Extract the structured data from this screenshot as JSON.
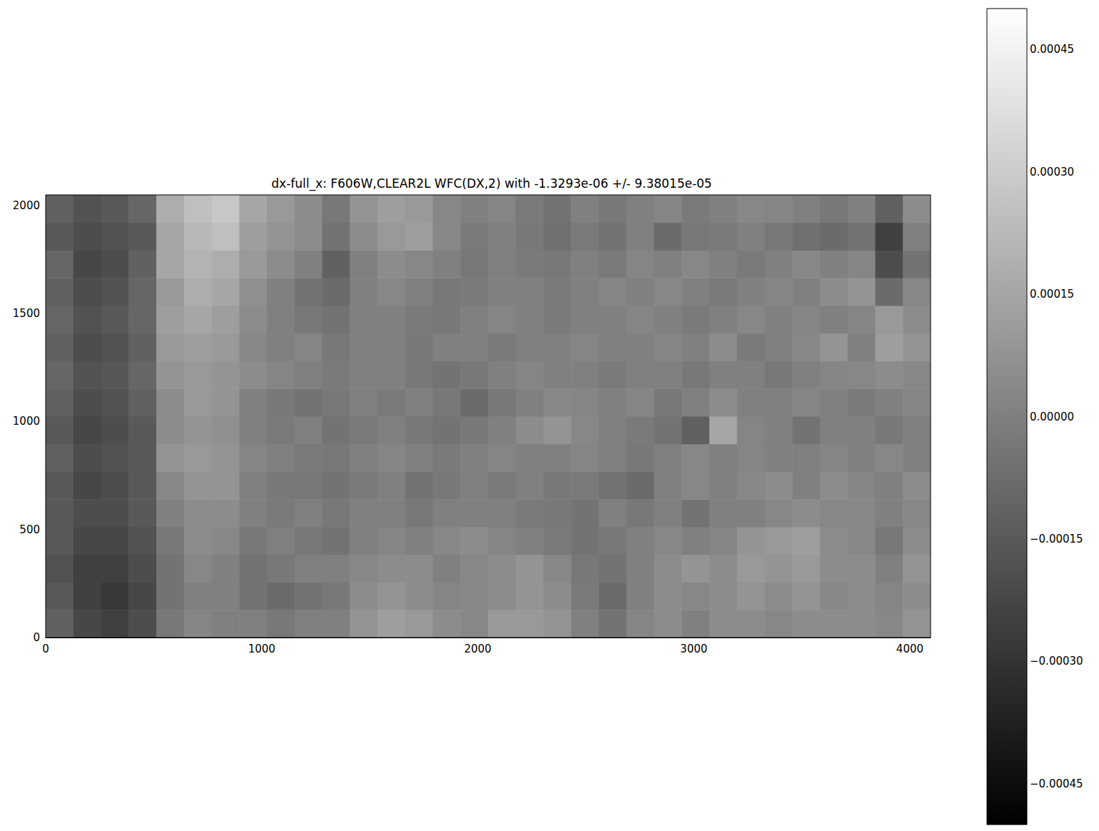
{
  "chart_data": {
    "type": "heatmap",
    "title": "dx-full_x: F606W,CLEAR2L WFC(DX,2) with -1.3293e-06 +/- 9.38015e-05",
    "xlim": [
      0,
      4096
    ],
    "xticks": [
      0,
      1000,
      2000,
      3000,
      4000
    ],
    "ylim": [
      0,
      2048
    ],
    "yticks": [
      0,
      500,
      1000,
      1500,
      2000
    ],
    "heatmap": {
      "x_edges": [
        0,
        128,
        256,
        384,
        512,
        640,
        768,
        896,
        1024,
        1152,
        1280,
        1408,
        1536,
        1664,
        1792,
        1920,
        2048,
        2176,
        2304,
        2432,
        2560,
        2688,
        2816,
        2944,
        3072,
        3200,
        3328,
        3456,
        3584,
        3712,
        3840,
        3968,
        4096
      ],
      "y_edges": [
        0,
        128,
        256,
        384,
        512,
        640,
        768,
        896,
        1024,
        1152,
        1280,
        1408,
        1536,
        1664,
        1792,
        1920,
        2048
      ],
      "cells": [
        [
          -0.00012,
          -0.00022,
          -0.00025,
          -0.0002,
          -3e-05,
          2e-05,
          0.0,
          0.0,
          -3e-05,
          0.0,
          0.0,
          8e-05,
          0.00012,
          0.0001,
          5e-05,
          3e-05,
          0.0001,
          0.0001,
          8e-05,
          0.0,
          -5e-05,
          2e-05,
          5e-05,
          0.0,
          5e-05,
          5e-05,
          3e-05,
          5e-05,
          5e-05,
          5e-05,
          3e-05,
          8e-05
        ],
        [
          -0.00015,
          -0.00025,
          -0.00028,
          -0.00022,
          -5e-05,
          0.0,
          0.0,
          -5e-05,
          -8e-05,
          -5e-05,
          -3e-05,
          5e-05,
          8e-05,
          5e-05,
          2e-05,
          3e-05,
          5e-05,
          8e-05,
          5e-05,
          -2e-05,
          -8e-05,
          0.0,
          5e-05,
          3e-05,
          5e-05,
          8e-05,
          5e-05,
          8e-05,
          3e-05,
          5e-05,
          2e-05,
          5e-05
        ],
        [
          -0.00018,
          -0.00025,
          -0.00025,
          -0.0002,
          -5e-05,
          3e-05,
          0.0,
          -5e-05,
          -3e-05,
          0.0,
          0.0,
          3e-05,
          5e-05,
          5e-05,
          0.0,
          3e-05,
          5e-05,
          8e-05,
          3e-05,
          -3e-05,
          -5e-05,
          0.0,
          5e-05,
          8e-05,
          5e-05,
          0.0001,
          8e-05,
          0.0001,
          5e-05,
          5e-05,
          0.0,
          8e-05
        ],
        [
          -0.00015,
          -0.00022,
          -0.00022,
          -0.00018,
          -3e-05,
          5e-05,
          3e-05,
          -3e-05,
          0.0,
          -3e-05,
          -5e-05,
          0.0,
          2e-05,
          0.0,
          3e-05,
          5e-05,
          2e-05,
          0.0,
          -2e-05,
          -5e-05,
          -3e-05,
          0.0,
          3e-05,
          0.0,
          2e-05,
          8e-05,
          0.0001,
          0.00012,
          5e-05,
          3e-05,
          -3e-05,
          5e-05
        ],
        [
          -0.00015,
          -0.0002,
          -0.0002,
          -0.00015,
          0.0,
          5e-05,
          5e-05,
          0.0,
          -2e-05,
          0.0,
          -3e-05,
          0.0,
          0.0,
          -3e-05,
          0.0,
          0.0,
          0.0,
          -2e-05,
          -3e-05,
          -5e-05,
          0.0,
          -3e-05,
          0.0,
          -5e-05,
          0.0,
          0.0,
          3e-05,
          5e-05,
          3e-05,
          3e-05,
          0.0,
          3e-05
        ],
        [
          -0.00015,
          -0.00022,
          -0.0002,
          -0.00015,
          3e-05,
          8e-05,
          8e-05,
          0.0,
          -3e-05,
          -3e-05,
          -5e-05,
          -2e-05,
          0.0,
          -5e-05,
          -3e-05,
          0.0,
          -2e-05,
          0.0,
          -3e-05,
          -2e-05,
          -5e-05,
          -8e-05,
          0.0,
          3e-05,
          0.0,
          3e-05,
          5e-05,
          0.0,
          5e-05,
          2e-05,
          0.0,
          5e-05
        ],
        [
          -0.00012,
          -0.0002,
          -0.00018,
          -0.00015,
          8e-05,
          0.0001,
          8e-05,
          2e-05,
          0.0,
          -2e-05,
          -3e-05,
          0.0,
          2e-05,
          0.0,
          -2e-05,
          0.0,
          2e-05,
          0.0,
          0.0,
          2e-05,
          0.0,
          -3e-05,
          0.0,
          3e-05,
          0.0,
          2e-05,
          0.0,
          0.0,
          2e-05,
          0.0,
          3e-05,
          0.0
        ],
        [
          -0.00015,
          -0.00022,
          -0.0002,
          -0.00015,
          5e-05,
          8e-05,
          6e-05,
          0.0,
          -2e-05,
          0.0,
          -5e-05,
          -2e-05,
          0.0,
          -3e-05,
          -5e-05,
          -3e-05,
          0.0,
          5e-05,
          8e-05,
          3e-05,
          0.0,
          -2e-05,
          -5e-05,
          -0.00012,
          0.00015,
          2e-05,
          0.0,
          -5e-05,
          0.0,
          0.0,
          -3e-05,
          0.0
        ],
        [
          -0.00012,
          -0.0002,
          -0.00018,
          -0.00012,
          5e-05,
          0.0001,
          8e-05,
          0.0,
          -3e-05,
          -5e-05,
          -3e-05,
          0.0,
          -2e-05,
          0.0,
          -3e-05,
          -8e-05,
          -3e-05,
          0.0,
          3e-05,
          2e-05,
          0.0,
          2e-05,
          -3e-05,
          0.0,
          5e-05,
          0.0,
          0.0,
          2e-05,
          0.0,
          -2e-05,
          0.0,
          2e-05
        ],
        [
          -0.0001,
          -0.00018,
          -0.00016,
          -0.0001,
          8e-05,
          0.0001,
          8e-05,
          5e-05,
          2e-05,
          0.0,
          -2e-05,
          0.0,
          0.0,
          -3e-05,
          -5e-05,
          -3e-05,
          0.0,
          2e-05,
          0.0,
          0.0,
          -2e-05,
          0.0,
          0.0,
          -3e-05,
          0.0,
          0.0,
          -3e-05,
          0.0,
          2e-05,
          3e-05,
          5e-05,
          3e-05
        ],
        [
          -0.00012,
          -0.0002,
          -0.00018,
          -0.00012,
          0.0001,
          0.00012,
          0.0001,
          3e-05,
          0.0,
          2e-05,
          -3e-05,
          0.0,
          0.0,
          -3e-05,
          0.0,
          0.0,
          -2e-05,
          0.0,
          0.0,
          2e-05,
          0.0,
          0.0,
          2e-05,
          0.0,
          5e-05,
          -2e-05,
          0.0,
          3e-05,
          8e-05,
          0.0,
          0.00012,
          8e-05
        ],
        [
          -0.0001,
          -0.00018,
          -0.00015,
          -0.0001,
          0.00012,
          0.00015,
          0.00012,
          5e-05,
          0.0,
          -3e-05,
          -5e-05,
          0.0,
          0.0,
          -2e-05,
          -3e-05,
          0.0,
          2e-05,
          0.0,
          -2e-05,
          0.0,
          0.0,
          2e-05,
          0.0,
          -2e-05,
          0.0,
          3e-05,
          0.0,
          2e-05,
          0.0,
          2e-05,
          0.0001,
          5e-05
        ],
        [
          -0.00012,
          -0.0002,
          -0.00018,
          -0.0001,
          0.0001,
          0.00018,
          0.00015,
          6e-05,
          0.0,
          -5e-05,
          -8e-05,
          0.0,
          3e-05,
          0.0,
          -3e-05,
          -2e-05,
          0.0,
          0.0,
          -2e-05,
          0.0,
          2e-05,
          0.0,
          3e-05,
          0.0,
          -2e-05,
          0.0,
          2e-05,
          0.0,
          5e-05,
          8e-05,
          -8e-05,
          3e-05
        ],
        [
          -0.0001,
          -0.00022,
          -0.0002,
          -0.00012,
          0.00015,
          0.0002,
          0.00018,
          0.0001,
          5e-05,
          0.0,
          -0.00012,
          0.0,
          5e-05,
          3e-05,
          0.0,
          -3e-05,
          0.0,
          -2e-05,
          -3e-05,
          0.0,
          -2e-05,
          2e-05,
          0.0,
          3e-05,
          0.0,
          -2e-05,
          0.0,
          3e-05,
          0.0,
          2e-05,
          -0.0002,
          -5e-05
        ],
        [
          -0.00015,
          -0.0002,
          -0.00018,
          -0.00015,
          0.00015,
          0.00022,
          0.00025,
          0.00012,
          8e-05,
          5e-05,
          -5e-05,
          5e-05,
          0.0001,
          0.00012,
          3e-05,
          -2e-05,
          0.0,
          -3e-05,
          -6e-05,
          -2e-05,
          -5e-05,
          0.0,
          -8e-05,
          -3e-05,
          -2e-05,
          0.0,
          -3e-05,
          -6e-05,
          -8e-05,
          -5e-05,
          -0.00025,
          0.0
        ],
        [
          -0.00012,
          -0.00018,
          -0.00015,
          -0.0001,
          0.00018,
          0.00025,
          0.00028,
          0.00015,
          0.0001,
          5e-05,
          -3e-05,
          8e-05,
          0.00012,
          0.0001,
          3e-05,
          0.0,
          2e-05,
          -2e-05,
          -5e-05,
          0.0,
          -3e-05,
          0.0,
          2e-05,
          -2e-05,
          0.0,
          3e-05,
          2e-05,
          0.0,
          -3e-05,
          0.0,
          -0.00012,
          5e-05
        ]
      ]
    },
    "colorbar": {
      "range": [
        -0.0005,
        0.0005
      ],
      "ticks": [
        {
          "value": -0.00045,
          "label": "−0.00045"
        },
        {
          "value": -0.0003,
          "label": "−0.00030"
        },
        {
          "value": -0.00015,
          "label": "−0.00015"
        },
        {
          "value": 0,
          "label": "0.00000"
        },
        {
          "value": 0.00015,
          "label": "0.00015"
        },
        {
          "value": 0.0003,
          "label": "0.00030"
        },
        {
          "value": 0.00045,
          "label": "0.00045"
        }
      ]
    }
  }
}
